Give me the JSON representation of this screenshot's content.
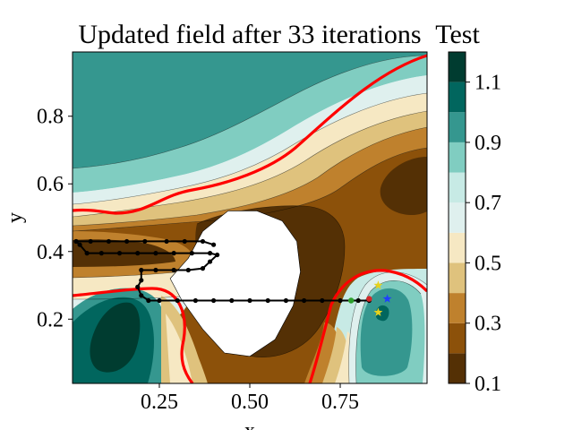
{
  "chart_data": {
    "type": "contour",
    "title": "Updated field after 33 iterations",
    "colorbar_title": "Test",
    "xlabel": "x",
    "ylabel": "y",
    "xlim": [
      0.01,
      0.99
    ],
    "ylim": [
      0.01,
      0.99
    ],
    "x_ticks": [
      "0.25",
      "0.50",
      "0.75"
    ],
    "x_tick_values": [
      0.25,
      0.5,
      0.75
    ],
    "y_ticks": [
      "0.2",
      "0.4",
      "0.6",
      "0.8"
    ],
    "y_tick_values": [
      0.2,
      0.4,
      0.6,
      0.8
    ],
    "colorbar": {
      "levels": [
        0.1,
        0.2,
        0.3,
        0.4,
        0.5,
        0.6,
        0.7,
        0.8,
        0.9,
        1.0,
        1.1,
        1.2
      ],
      "colors": [
        "#543005",
        "#8c510a",
        "#bf812d",
        "#dfc27d",
        "#f6e8c3",
        "#dff0ee",
        "#c7eae5",
        "#80cdc1",
        "#35978f",
        "#01665e",
        "#003c30"
      ],
      "tick_labels": [
        "0.1",
        "0.3",
        "0.5",
        "0.7",
        "0.9",
        "1.1"
      ],
      "tick_values": [
        0.1,
        0.3,
        0.5,
        0.7,
        0.9,
        1.1
      ]
    },
    "highlight_contour_color": "#ff0000",
    "obstacle": {
      "fill": "#ffffff",
      "outline": [
        [
          0.33,
          0.38
        ],
        [
          0.37,
          0.46
        ],
        [
          0.44,
          0.52
        ],
        [
          0.52,
          0.52
        ],
        [
          0.59,
          0.49
        ],
        [
          0.63,
          0.43
        ],
        [
          0.64,
          0.34
        ],
        [
          0.62,
          0.24
        ],
        [
          0.57,
          0.14
        ],
        [
          0.5,
          0.09
        ],
        [
          0.43,
          0.1
        ],
        [
          0.37,
          0.17
        ],
        [
          0.31,
          0.26
        ],
        [
          0.28,
          0.32
        ]
      ]
    },
    "path": {
      "color": "#000000",
      "points": [
        [
          0.02,
          0.43
        ],
        [
          0.03,
          0.42
        ],
        [
          0.05,
          0.395
        ],
        [
          0.09,
          0.395
        ],
        [
          0.14,
          0.395
        ],
        [
          0.19,
          0.395
        ],
        [
          0.24,
          0.395
        ],
        [
          0.29,
          0.395
        ],
        [
          0.34,
          0.395
        ],
        [
          0.39,
          0.395
        ],
        [
          0.41,
          0.39
        ],
        [
          0.39,
          0.37
        ],
        [
          0.37,
          0.35
        ],
        [
          0.33,
          0.345
        ],
        [
          0.29,
          0.345
        ],
        [
          0.24,
          0.345
        ],
        [
          0.2,
          0.345
        ],
        [
          0.2,
          0.315
        ],
        [
          0.19,
          0.295
        ],
        [
          0.2,
          0.27
        ],
        [
          0.22,
          0.255
        ],
        [
          0.25,
          0.255
        ],
        [
          0.3,
          0.255
        ],
        [
          0.35,
          0.255
        ],
        [
          0.4,
          0.255
        ],
        [
          0.45,
          0.255
        ],
        [
          0.5,
          0.255
        ],
        [
          0.55,
          0.255
        ],
        [
          0.6,
          0.255
        ],
        [
          0.65,
          0.255
        ],
        [
          0.7,
          0.255
        ],
        [
          0.75,
          0.255
        ],
        [
          0.8,
          0.255
        ],
        [
          0.83,
          0.255
        ]
      ],
      "upper_branch": [
        [
          0.02,
          0.43
        ],
        [
          0.06,
          0.43
        ],
        [
          0.11,
          0.43
        ],
        [
          0.16,
          0.43
        ],
        [
          0.21,
          0.43
        ],
        [
          0.27,
          0.43
        ],
        [
          0.32,
          0.43
        ],
        [
          0.37,
          0.43
        ],
        [
          0.4,
          0.42
        ]
      ]
    },
    "markers": [
      {
        "label": "start",
        "x": 0.78,
        "y": 0.255,
        "color": "#2ca02c",
        "shape": "dot"
      },
      {
        "label": "current",
        "x": 0.83,
        "y": 0.26,
        "color": "#d62728",
        "shape": "dot"
      },
      {
        "label": "target",
        "x": 0.88,
        "y": 0.26,
        "color": "#1f3fff",
        "shape": "star"
      },
      {
        "label": "aux1",
        "x": 0.855,
        "y": 0.3,
        "color": "#e6d21e",
        "shape": "star"
      },
      {
        "label": "aux2",
        "x": 0.855,
        "y": 0.22,
        "color": "#e6d21e",
        "shape": "star"
      }
    ]
  }
}
